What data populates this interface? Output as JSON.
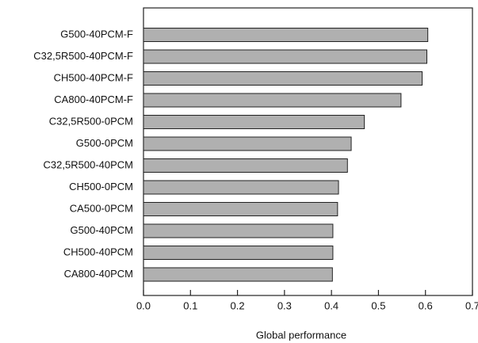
{
  "chart_data": {
    "type": "barh",
    "xlabel": "Global performance",
    "categories": [
      "G500-40PCM-F",
      "C32,5R500-40PCM-F",
      "CH500-40PCM-F",
      "CA800-40PCM-F",
      "C32,5R500-0PCM",
      "G500-0PCM",
      "C32,5R500-40PCM",
      "CH500-0PCM",
      "CA500-0PCM",
      "G500-40PCM",
      "CH500-40PCM",
      "CA800-40PCM"
    ],
    "values": [
      0.605,
      0.603,
      0.593,
      0.548,
      0.47,
      0.442,
      0.434,
      0.415,
      0.413,
      0.403,
      0.403,
      0.402
    ],
    "color": "#b0b0b0",
    "xlim": [
      0,
      0.7
    ],
    "xticks": [
      {
        "value": 0,
        "label": "0.0"
      },
      {
        "value": 0.1,
        "label": "0.1"
      },
      {
        "value": 0.2,
        "label": "0.2"
      },
      {
        "value": 0.3,
        "label": "0.3"
      },
      {
        "value": 0.4,
        "label": "0.4"
      },
      {
        "value": 0.5,
        "label": "0.5"
      },
      {
        "value": 0.6,
        "label": "0.6"
      },
      {
        "value": 0.7,
        "label": "0.7"
      }
    ]
  }
}
